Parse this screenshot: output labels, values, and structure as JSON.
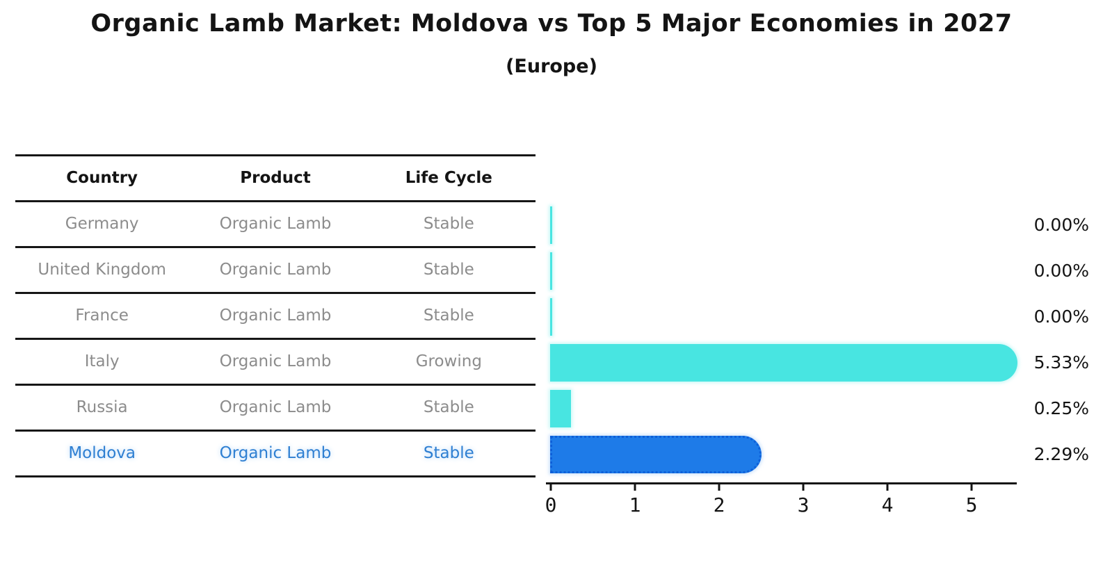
{
  "title": "Organic Lamb Market: Moldova vs Top 5 Major Economies in 2027",
  "subtitle": "(Europe)",
  "table": {
    "headers": [
      "Country",
      "Product",
      "Life Cycle"
    ],
    "rows": [
      {
        "country": "Germany",
        "product": "Organic Lamb",
        "life_cycle": "Stable",
        "highlight": false
      },
      {
        "country": "United Kingdom",
        "product": "Organic Lamb",
        "life_cycle": "Stable",
        "highlight": false
      },
      {
        "country": "France",
        "product": "Organic Lamb",
        "life_cycle": "Stable",
        "highlight": false
      },
      {
        "country": "Italy",
        "product": "Organic Lamb",
        "life_cycle": "Growing",
        "highlight": false
      },
      {
        "country": "Russia",
        "product": "Organic Lamb",
        "life_cycle": "Stable",
        "highlight": false
      },
      {
        "country": "Moldova",
        "product": "Organic Lamb",
        "life_cycle": "Stable",
        "highlight": true
      }
    ]
  },
  "chart_data": {
    "type": "bar",
    "orientation": "horizontal",
    "title": "Organic Lamb Market: Moldova vs Top 5 Major Economies in 2027 (Europe)",
    "categories": [
      "Germany",
      "United Kingdom",
      "France",
      "Italy",
      "Russia",
      "Moldova"
    ],
    "values": [
      0.0,
      0.0,
      0.0,
      5.33,
      0.25,
      2.29
    ],
    "value_labels": [
      "0.00%",
      "0.00%",
      "0.00%",
      "5.33%",
      "0.25%",
      "2.29%"
    ],
    "unit": "%",
    "xlim": [
      0,
      5.5
    ],
    "x_ticks": [
      0,
      1,
      2,
      3,
      4,
      5
    ],
    "x_tick_labels": [
      "0",
      "1",
      "2",
      "3",
      "4",
      "5"
    ],
    "grid": false,
    "legend": false,
    "highlight_index": 5
  },
  "colors": {
    "bar_teal": "#48e5e1",
    "bar_blue": "#1e7be8",
    "bar_blue_edge": "#0e5fd8",
    "highlight_text": "#2e7fd2",
    "text_primary": "#141414",
    "text_muted": "#8c8c8c"
  }
}
